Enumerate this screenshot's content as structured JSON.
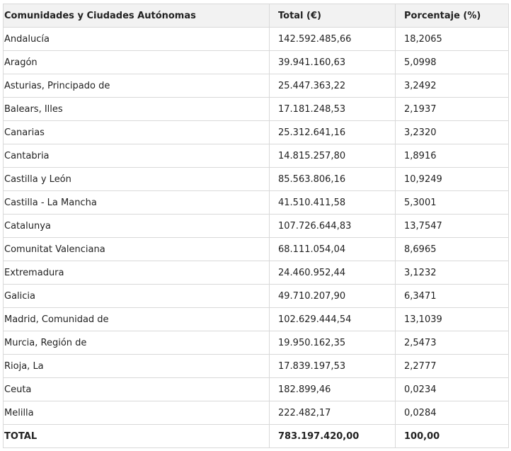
{
  "table": {
    "headers": [
      "Comunidades y Ciudades Autónomas",
      "Total (€)",
      "Porcentaje (%)"
    ],
    "rows": [
      [
        "Andalucía",
        "142.592.485,66",
        "18,2065"
      ],
      [
        "Aragón",
        "39.941.160,63",
        "5,0998"
      ],
      [
        "Asturias, Principado de",
        "25.447.363,22",
        "3,2492"
      ],
      [
        "Balears, Illes",
        "17.181.248,53",
        "2,1937"
      ],
      [
        "Canarias",
        "25.312.641,16",
        "3,2320"
      ],
      [
        "Cantabria",
        "14.815.257,80",
        "1,8916"
      ],
      [
        "Castilla y León",
        "85.563.806,16",
        "10,9249"
      ],
      [
        "Castilla - La Mancha",
        "41.510.411,58",
        "5,3001"
      ],
      [
        "Catalunya",
        "107.726.644,83",
        "13,7547"
      ],
      [
        "Comunitat Valenciana",
        "68.111.054,04",
        "8,6965"
      ],
      [
        "Extremadura",
        "24.460.952,44",
        "3,1232"
      ],
      [
        "Galicia",
        "49.710.207,90",
        "6,3471"
      ],
      [
        "Madrid, Comunidad de",
        "102.629.444,54",
        "13,1039"
      ],
      [
        "Murcia, Región de",
        "19.950.162,35",
        "2,5473"
      ],
      [
        "Rioja, La",
        "17.839.197,53",
        "2,2777"
      ],
      [
        "Ceuta",
        "182.899,46",
        "0,0234"
      ],
      [
        "Melilla",
        "222.482,17",
        "0,0284"
      ]
    ],
    "total": [
      "TOTAL",
      "783.197.420,00",
      "100,00"
    ]
  }
}
